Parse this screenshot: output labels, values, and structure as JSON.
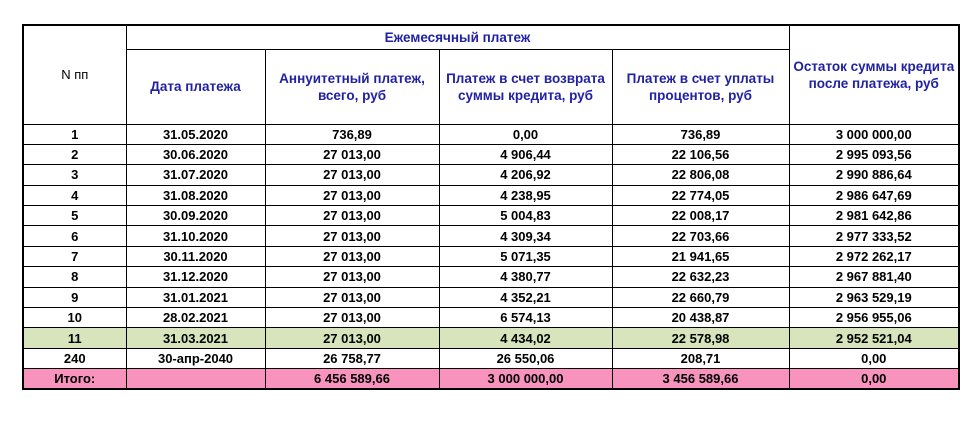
{
  "colors": {
    "header_text": "#2121A3",
    "highlight_row": "#D8E4BC",
    "total_row": "#F893BE",
    "border": "#000000",
    "body_text": "#000000"
  },
  "chart_data": {
    "type": "table",
    "title": "",
    "header": {
      "num": "N пп",
      "group": "Ежемесячный платеж",
      "date": "Дата платежа",
      "annuity": "Аннуитетный платеж, всего, руб",
      "principal": "Платеж в счет возврата суммы кредита, руб",
      "interest": "Платеж в счет уплаты процентов, руб",
      "balance": "Остаток суммы кредита после платежа, руб"
    },
    "columns_order": [
      "num",
      "date",
      "annuity",
      "principal",
      "interest",
      "balance"
    ],
    "rows": [
      {
        "num": "1",
        "date": "31.05.2020",
        "annuity": "736,89",
        "principal": "0,00",
        "interest": "736,89",
        "balance": "3 000 000,00",
        "style": "normal"
      },
      {
        "num": "2",
        "date": "30.06.2020",
        "annuity": "27 013,00",
        "principal": "4 906,44",
        "interest": "22 106,56",
        "balance": "2 995 093,56",
        "style": "normal"
      },
      {
        "num": "3",
        "date": "31.07.2020",
        "annuity": "27 013,00",
        "principal": "4 206,92",
        "interest": "22 806,08",
        "balance": "2 990 886,64",
        "style": "normal"
      },
      {
        "num": "4",
        "date": "31.08.2020",
        "annuity": "27 013,00",
        "principal": "4 238,95",
        "interest": "22 774,05",
        "balance": "2 986 647,69",
        "style": "normal"
      },
      {
        "num": "5",
        "date": "30.09.2020",
        "annuity": "27 013,00",
        "principal": "5 004,83",
        "interest": "22 008,17",
        "balance": "2 981 642,86",
        "style": "normal"
      },
      {
        "num": "6",
        "date": "31.10.2020",
        "annuity": "27 013,00",
        "principal": "4 309,34",
        "interest": "22 703,66",
        "balance": "2 977 333,52",
        "style": "normal"
      },
      {
        "num": "7",
        "date": "30.11.2020",
        "annuity": "27 013,00",
        "principal": "5 071,35",
        "interest": "21 941,65",
        "balance": "2 972 262,17",
        "style": "normal"
      },
      {
        "num": "8",
        "date": "31.12.2020",
        "annuity": "27 013,00",
        "principal": "4 380,77",
        "interest": "22 632,23",
        "balance": "2 967 881,40",
        "style": "normal"
      },
      {
        "num": "9",
        "date": "31.01.2021",
        "annuity": "27 013,00",
        "principal": "4 352,21",
        "interest": "22 660,79",
        "balance": "2 963 529,19",
        "style": "normal"
      },
      {
        "num": "10",
        "date": "28.02.2021",
        "annuity": "27 013,00",
        "principal": "6 574,13",
        "interest": "20 438,87",
        "balance": "2 956 955,06",
        "style": "normal"
      },
      {
        "num": "11",
        "date": "31.03.2021",
        "annuity": "27 013,00",
        "principal": "4 434,02",
        "interest": "22 578,98",
        "balance": "2 952 521,04",
        "style": "highlight"
      },
      {
        "num": "240",
        "date": "30-апр-2040",
        "annuity": "26 758,77",
        "principal": "26 550,06",
        "interest": "208,71",
        "balance": "0,00",
        "style": "normal"
      },
      {
        "num": "Итого:",
        "date": "",
        "annuity": "6 456 589,66",
        "principal": "3 000 000,00",
        "interest": "3 456 589,66",
        "balance": "0,00",
        "style": "total"
      }
    ]
  }
}
